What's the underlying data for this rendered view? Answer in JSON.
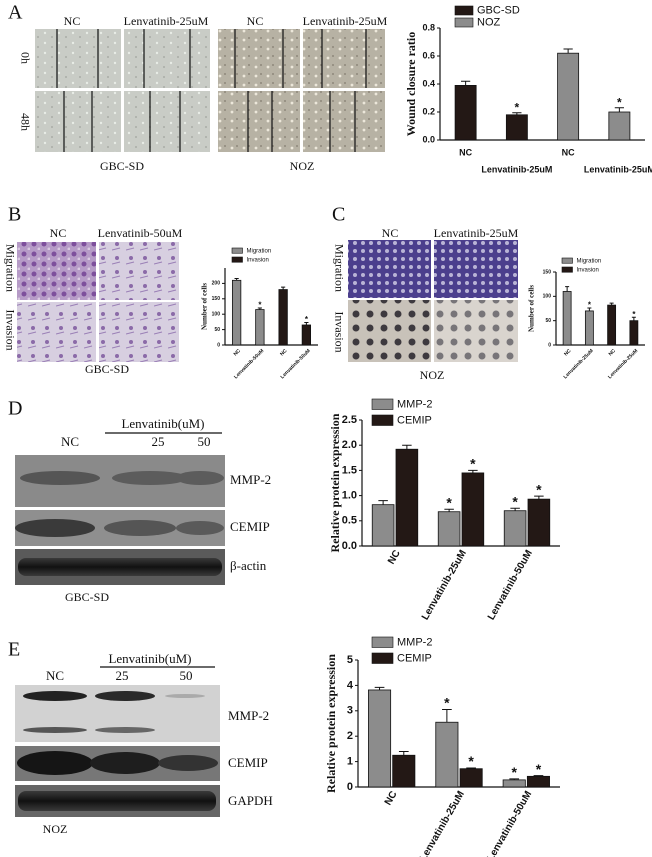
{
  "figure": {
    "panel_a": {
      "label": "A",
      "columns": [
        "NC",
        "Lenvatinib-25uM"
      ],
      "rows": [
        "0h",
        "48h"
      ],
      "cell_lines": [
        "GBC-SD",
        "NOZ"
      ]
    },
    "panel_b": {
      "label": "B",
      "columns": [
        "NC",
        "Lenvatinib-50uM"
      ],
      "rows": [
        "Migration",
        "Invasion"
      ],
      "cell_line": "GBC-SD"
    },
    "panel_c": {
      "label": "C",
      "columns": [
        "NC",
        "Lenvatinib-25uM"
      ],
      "rows": [
        "Migration",
        "Invasion"
      ],
      "cell_line": "NOZ"
    },
    "panel_d": {
      "label": "D",
      "treatment": "Lenvatinib(uM)",
      "lanes": [
        "NC",
        "25",
        "50"
      ],
      "proteins": [
        "MMP-2",
        "CEMIP",
        "β-actin"
      ],
      "cell_line": "GBC-SD"
    },
    "panel_e": {
      "label": "E",
      "treatment": "Lenvatinib(uM)",
      "lanes": [
        "NC",
        "25",
        "50"
      ],
      "proteins": [
        "MMP-2",
        "CEMIP",
        "GAPDH"
      ],
      "cell_line": "NOZ"
    }
  },
  "chart_data": [
    {
      "type": "bar",
      "ylabel": "Wound closure ratio",
      "categories": [
        "NC",
        "Lenvatinib-25uM",
        "NC",
        "Lenvatinib-25uM"
      ],
      "series": [
        {
          "name": "GBC-SD",
          "color": "#231815",
          "values": [
            0.39,
            0.18,
            null,
            null
          ],
          "errors": [
            0.03,
            0.015,
            null,
            null
          ],
          "annotations": [
            null,
            "*",
            null,
            null
          ]
        },
        {
          "name": "NOZ",
          "color": "#8c8c8c",
          "values": [
            null,
            null,
            0.62,
            0.2
          ],
          "errors": [
            null,
            null,
            0.03,
            0.03
          ],
          "annotations": [
            null,
            null,
            null,
            "*"
          ]
        }
      ],
      "ylim": [
        0,
        0.8
      ],
      "yticks": [
        {
          "value": 0,
          "label": "0.0"
        },
        {
          "value": 0.2,
          "label": "0.2"
        },
        {
          "value": 0.4,
          "label": "0.4"
        },
        {
          "value": 0.6,
          "label": "0.6"
        },
        {
          "value": 0.8,
          "label": "0.8"
        }
      ]
    },
    {
      "type": "bar",
      "ylabel": "Number of cells",
      "categories": [
        "NC",
        "Lenvatinib-50uM",
        "NC",
        "Lenvatinib-50uM"
      ],
      "series": [
        {
          "name": "Migration",
          "color": "#8c8c8c",
          "values": [
            210,
            115,
            null,
            null
          ],
          "errors": [
            6,
            5,
            null,
            null
          ],
          "annotations": [
            null,
            "*",
            null,
            null
          ]
        },
        {
          "name": "Invasion",
          "color": "#231815",
          "values": [
            null,
            null,
            180,
            65
          ],
          "errors": [
            null,
            null,
            8,
            8
          ],
          "annotations": [
            null,
            null,
            null,
            "*"
          ]
        }
      ],
      "ylim": [
        0,
        250
      ],
      "yticks": [
        0,
        50,
        100,
        150,
        200
      ]
    },
    {
      "type": "bar",
      "ylabel": "Number of cells",
      "categories": [
        "NC",
        "Lenvatinib-25uM",
        "NC",
        "Lenvatinib-25uM"
      ],
      "series": [
        {
          "name": "Migration",
          "color": "#8c8c8c",
          "values": [
            110,
            70,
            null,
            null
          ],
          "errors": [
            10,
            6,
            null,
            null
          ],
          "annotations": [
            null,
            "*",
            null,
            null
          ]
        },
        {
          "name": "Invasion",
          "color": "#231815",
          "values": [
            null,
            null,
            82,
            50
          ],
          "errors": [
            null,
            null,
            4,
            7
          ],
          "annotations": [
            null,
            null,
            null,
            "*"
          ]
        }
      ],
      "ylim": [
        0,
        150
      ],
      "yticks": [
        0,
        50,
        100,
        150
      ]
    },
    {
      "type": "bar",
      "ylabel": "Relative protein expression",
      "categories": [
        "NC",
        "Lenvatinib-25uM",
        "Lenvatinib-50uM"
      ],
      "series": [
        {
          "name": "MMP-2",
          "color": "#8c8c8c",
          "values": [
            0.82,
            0.68,
            0.7
          ],
          "errors": [
            0.08,
            0.05,
            0.05
          ],
          "annotations": [
            null,
            "*",
            "*"
          ]
        },
        {
          "name": "CEMIP",
          "color": "#231815",
          "values": [
            1.92,
            1.45,
            0.93
          ],
          "errors": [
            0.08,
            0.05,
            0.06
          ],
          "annotations": [
            null,
            "*",
            "*"
          ]
        }
      ],
      "ylim": [
        0,
        2.5
      ],
      "yticks": [
        {
          "value": 0,
          "label": "0.0"
        },
        {
          "value": 0.5,
          "label": "0.5"
        },
        {
          "value": 1,
          "label": "1.0"
        },
        {
          "value": 1.5,
          "label": "1.5"
        },
        {
          "value": 2,
          "label": "2.0"
        },
        {
          "value": 2.5,
          "label": "2.5"
        }
      ]
    },
    {
      "type": "bar",
      "ylabel": "Relative protein expression",
      "categories": [
        "NC",
        "Lenvatinib-25uM",
        "Lenvatinib-50uM"
      ],
      "series": [
        {
          "name": "MMP-2",
          "color": "#8c8c8c",
          "values": [
            3.82,
            2.55,
            0.28
          ],
          "errors": [
            0.1,
            0.5,
            0.04
          ],
          "annotations": [
            null,
            "*",
            "*"
          ]
        },
        {
          "name": "CEMIP",
          "color": "#231815",
          "values": [
            1.25,
            0.72,
            0.42
          ],
          "errors": [
            0.15,
            0.03,
            0.03
          ],
          "annotations": [
            null,
            "*",
            "*"
          ]
        }
      ],
      "ylim": [
        0,
        5
      ],
      "yticks": [
        0,
        1,
        2,
        3,
        4,
        5
      ]
    }
  ]
}
